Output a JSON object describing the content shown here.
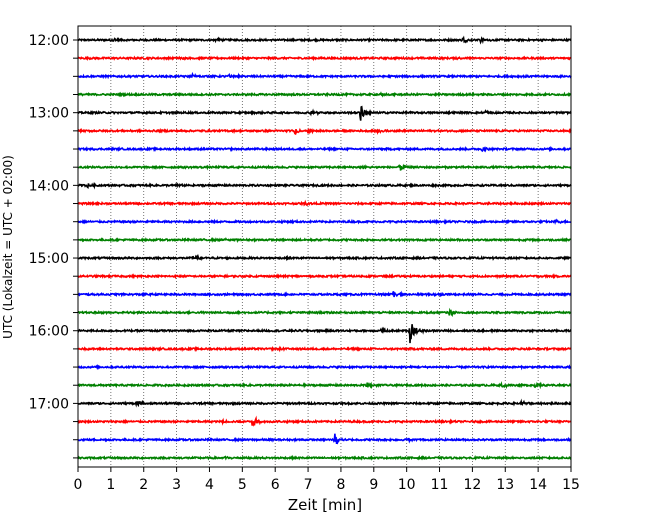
{
  "chart_data": {
    "type": "line",
    "title": "",
    "xlabel": "Zeit  [min]",
    "ylabel": "UTC (Lokalzeit = UTC + 02:00)",
    "xlim": [
      0,
      15
    ],
    "x_ticks": [
      "0",
      "1",
      "2",
      "3",
      "4",
      "5",
      "6",
      "7",
      "8",
      "9",
      "10",
      "11",
      "12",
      "13",
      "14",
      "15"
    ],
    "y_tick_labels": [
      "12:00",
      "13:00",
      "14:00",
      "15:00",
      "16:00",
      "17:00"
    ],
    "grid": "vertical-dotted",
    "trace_colors": [
      "#000000",
      "#ff0000",
      "#0000ff",
      "#008000"
    ],
    "series": [
      {
        "start": "12:00",
        "color": "#000000",
        "events": [
          {
            "t": 1.1,
            "amp": 0.25
          },
          {
            "t": 4.2,
            "amp": 0.2
          },
          {
            "t": 11.7,
            "amp": 0.3
          },
          {
            "t": 12.2,
            "amp": 0.3
          }
        ]
      },
      {
        "start": "12:15",
        "color": "#ff0000",
        "events": [
          {
            "t": 3.0,
            "amp": 0.15
          },
          {
            "t": 11.5,
            "amp": 0.15
          }
        ]
      },
      {
        "start": "12:30",
        "color": "#0000ff",
        "events": [
          {
            "t": 3.5,
            "amp": 0.35
          },
          {
            "t": 4.6,
            "amp": 0.2
          }
        ]
      },
      {
        "start": "12:45",
        "color": "#008000",
        "events": [
          {
            "t": 9.2,
            "amp": 0.1
          }
        ]
      },
      {
        "start": "13:00",
        "color": "#000000",
        "events": [
          {
            "t": 7.1,
            "amp": 0.3
          },
          {
            "t": 8.6,
            "amp": 0.95
          },
          {
            "t": 12.4,
            "amp": 0.25
          }
        ]
      },
      {
        "start": "13:15",
        "color": "#ff0000",
        "events": [
          {
            "t": 6.6,
            "amp": 0.35
          },
          {
            "t": 7.0,
            "amp": 0.3
          },
          {
            "t": 9.1,
            "amp": 0.25
          }
        ]
      },
      {
        "start": "13:30",
        "color": "#0000ff",
        "events": [
          {
            "t": 12.3,
            "amp": 0.25
          }
        ]
      },
      {
        "start": "13:45",
        "color": "#008000",
        "events": [
          {
            "t": 8.7,
            "amp": 0.35
          },
          {
            "t": 9.8,
            "amp": 0.5
          }
        ]
      },
      {
        "start": "14:00",
        "color": "#000000",
        "events": [
          {
            "t": 0.3,
            "amp": 0.25
          },
          {
            "t": 3.0,
            "amp": 0.15
          }
        ]
      },
      {
        "start": "14:15",
        "color": "#ff0000",
        "events": [
          {
            "t": 6.9,
            "amp": 0.2
          }
        ]
      },
      {
        "start": "14:30",
        "color": "#0000ff",
        "events": [
          {
            "t": 14.5,
            "amp": 0.25
          }
        ]
      },
      {
        "start": "14:45",
        "color": "#008000",
        "events": [
          {
            "t": 4.5,
            "amp": 0.15
          }
        ]
      },
      {
        "start": "15:00",
        "color": "#000000",
        "events": [
          {
            "t": 3.5,
            "amp": 0.35
          },
          {
            "t": 12.6,
            "amp": 0.15
          }
        ]
      },
      {
        "start": "15:15",
        "color": "#ff0000",
        "events": []
      },
      {
        "start": "15:30",
        "color": "#0000ff",
        "events": [
          {
            "t": 9.6,
            "amp": 0.5
          },
          {
            "t": 10.8,
            "amp": 0.15
          }
        ]
      },
      {
        "start": "15:45",
        "color": "#008000",
        "events": [
          {
            "t": 11.3,
            "amp": 0.45
          }
        ]
      },
      {
        "start": "16:00",
        "color": "#000000",
        "events": [
          {
            "t": 10.1,
            "amp": 1.6
          },
          {
            "t": 9.2,
            "amp": 0.2
          }
        ]
      },
      {
        "start": "16:15",
        "color": "#ff0000",
        "events": [
          {
            "t": 6.1,
            "amp": 0.15
          }
        ]
      },
      {
        "start": "16:30",
        "color": "#0000ff",
        "events": []
      },
      {
        "start": "16:45",
        "color": "#008000",
        "events": [
          {
            "t": 8.8,
            "amp": 0.3
          },
          {
            "t": 12.9,
            "amp": 0.3
          },
          {
            "t": 13.9,
            "amp": 0.2
          }
        ]
      },
      {
        "start": "17:00",
        "color": "#000000",
        "events": [
          {
            "t": 1.8,
            "amp": 0.3
          },
          {
            "t": 13.5,
            "amp": 0.25
          }
        ]
      },
      {
        "start": "17:15",
        "color": "#ff0000",
        "events": [
          {
            "t": 5.3,
            "amp": 0.9
          },
          {
            "t": 4.4,
            "amp": 0.15
          }
        ]
      },
      {
        "start": "17:30",
        "color": "#0000ff",
        "events": [
          {
            "t": 7.8,
            "amp": 1.0
          },
          {
            "t": 10.0,
            "amp": 0.15
          }
        ]
      },
      {
        "start": "17:45",
        "color": "#008000",
        "events": [
          {
            "t": 4.5,
            "amp": 0.1
          }
        ]
      }
    ]
  }
}
